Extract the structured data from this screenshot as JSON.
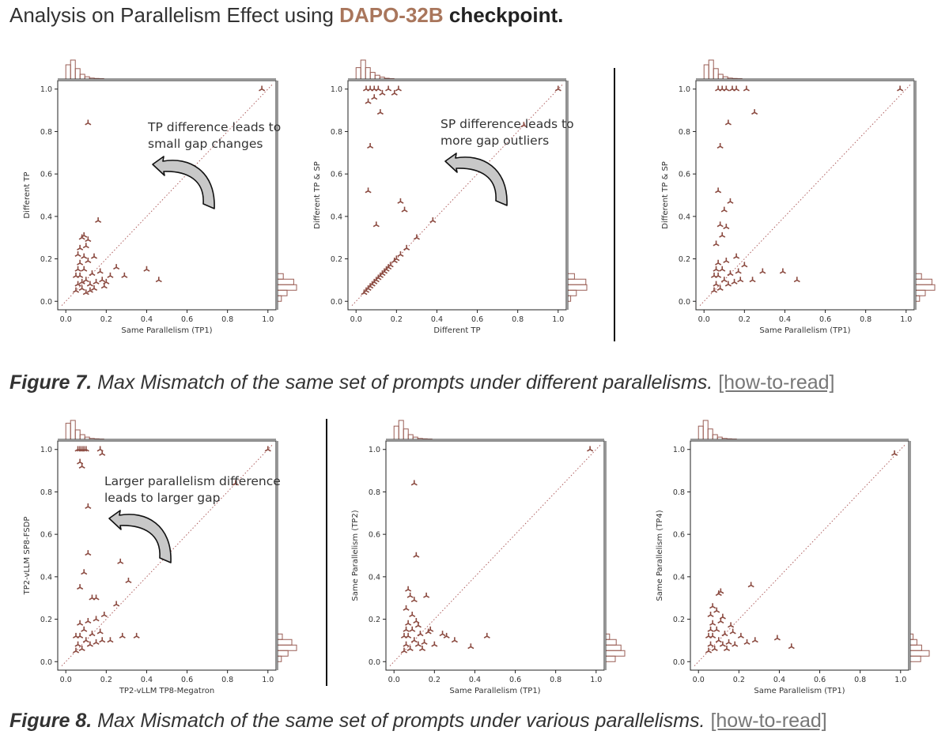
{
  "headline": {
    "prefix": "Analysis on Parallelism Effect using",
    "highlight": "DAPO-32B",
    "suffix": "checkpoint."
  },
  "figures": [
    {
      "fig_label": "Figure 7.",
      "caption": "Max Mismatch of the same set of prompts under different parallelisms.",
      "link": "[how-to-read]"
    },
    {
      "fig_label": "Figure 8.",
      "caption": "Max Mismatch of the same set of prompts under various parallelisms.",
      "link": "[how-to-read]"
    }
  ],
  "colors": {
    "marker": "#8b4a40",
    "diagonal": "#b06060",
    "hist": "#9a5e55",
    "highlight": "#a9765c"
  },
  "chart_data": [
    {
      "type": "scatter",
      "title": "",
      "xlabel": "Same Parallelism (TP1)",
      "ylabel": "Different TP",
      "xlim": [
        -0.04,
        1.04
      ],
      "ylim": [
        -0.04,
        1.04
      ],
      "xticks": [
        "0.0",
        "0.2",
        "0.4",
        "0.6",
        "0.8",
        "1.0"
      ],
      "yticks": [
        "0.0",
        "0.2",
        "0.4",
        "0.6",
        "0.8",
        "1.0"
      ],
      "annotation": "TP difference leads to\nsmall gap changes",
      "top_hist": [
        0.75,
        1.0,
        0.55,
        0.25,
        0.12,
        0.05,
        0.03,
        0.02
      ],
      "right_hist": [
        0.3,
        0.85,
        1.0,
        0.5,
        0.2
      ],
      "points": [
        [
          0.97,
          1.0
        ],
        [
          0.11,
          0.84
        ],
        [
          0.16,
          0.38
        ],
        [
          0.4,
          0.15
        ],
        [
          0.46,
          0.1
        ],
        [
          0.29,
          0.12
        ],
        [
          0.25,
          0.16
        ],
        [
          0.08,
          0.3
        ],
        [
          0.09,
          0.31
        ],
        [
          0.11,
          0.29
        ],
        [
          0.06,
          0.22
        ],
        [
          0.1,
          0.26
        ],
        [
          0.22,
          0.12
        ],
        [
          0.14,
          0.21
        ],
        [
          0.05,
          0.05
        ],
        [
          0.06,
          0.08
        ],
        [
          0.08,
          0.06
        ],
        [
          0.07,
          0.12
        ],
        [
          0.1,
          0.1
        ],
        [
          0.12,
          0.08
        ],
        [
          0.09,
          0.15
        ],
        [
          0.13,
          0.13
        ],
        [
          0.15,
          0.09
        ],
        [
          0.07,
          0.18
        ],
        [
          0.11,
          0.19
        ],
        [
          0.05,
          0.12
        ],
        [
          0.18,
          0.1
        ],
        [
          0.17,
          0.14
        ],
        [
          0.06,
          0.15
        ],
        [
          0.08,
          0.09
        ],
        [
          0.12,
          0.05
        ],
        [
          0.1,
          0.04
        ],
        [
          0.14,
          0.06
        ],
        [
          0.09,
          0.21
        ],
        [
          0.07,
          0.25
        ],
        [
          0.19,
          0.07
        ],
        [
          0.2,
          0.09
        ]
      ]
    },
    {
      "type": "scatter",
      "title": "",
      "xlabel": "Different TP",
      "ylabel": "Different TP & SP",
      "xlim": [
        -0.04,
        1.04
      ],
      "ylim": [
        -0.04,
        1.04
      ],
      "xticks": [
        "0.0",
        "0.2",
        "0.4",
        "0.6",
        "0.8",
        "1.0"
      ],
      "yticks": [
        "0.0",
        "0.2",
        "0.4",
        "0.6",
        "0.8",
        "1.0"
      ],
      "annotation": "SP difference leads to\nmore gap outliers",
      "top_hist": [
        0.6,
        1.0,
        0.6,
        0.35,
        0.2,
        0.1,
        0.04,
        0.02
      ],
      "right_hist": [
        0.35,
        0.95,
        1.0,
        0.45,
        0.15
      ],
      "points": [
        [
          1.0,
          1.0
        ],
        [
          0.05,
          1.0
        ],
        [
          0.07,
          1.0
        ],
        [
          0.09,
          1.0
        ],
        [
          0.11,
          1.0
        ],
        [
          0.16,
          1.0
        ],
        [
          0.21,
          1.0
        ],
        [
          0.06,
          0.94
        ],
        [
          0.13,
          0.98
        ],
        [
          0.09,
          0.96
        ],
        [
          0.12,
          0.89
        ],
        [
          0.19,
          0.98
        ],
        [
          0.07,
          0.73
        ],
        [
          0.06,
          0.52
        ],
        [
          0.22,
          0.47
        ],
        [
          0.24,
          0.43
        ],
        [
          0.1,
          0.36
        ],
        [
          0.83,
          0.83
        ],
        [
          0.38,
          0.38
        ],
        [
          0.3,
          0.3
        ],
        [
          0.25,
          0.25
        ],
        [
          0.22,
          0.22
        ],
        [
          0.19,
          0.19
        ],
        [
          0.17,
          0.17
        ],
        [
          0.15,
          0.15
        ],
        [
          0.13,
          0.13
        ],
        [
          0.11,
          0.11
        ],
        [
          0.1,
          0.1
        ],
        [
          0.09,
          0.09
        ],
        [
          0.08,
          0.08
        ],
        [
          0.07,
          0.07
        ],
        [
          0.06,
          0.06
        ],
        [
          0.05,
          0.05
        ],
        [
          0.04,
          0.04
        ],
        [
          0.12,
          0.12
        ],
        [
          0.14,
          0.14
        ],
        [
          0.16,
          0.16
        ],
        [
          0.2,
          0.2
        ]
      ]
    },
    {
      "type": "scatter",
      "title": "",
      "xlabel": "Same Parallelism (TP1)",
      "ylabel": "Different TP & SP",
      "xlim": [
        -0.04,
        1.04
      ],
      "ylim": [
        -0.04,
        1.04
      ],
      "xticks": [
        "0.0",
        "0.2",
        "0.4",
        "0.6",
        "0.8",
        "1.0"
      ],
      "yticks": [
        "0.0",
        "0.2",
        "0.4",
        "0.6",
        "0.8",
        "1.0"
      ],
      "annotation": "",
      "top_hist": [
        0.75,
        1.0,
        0.55,
        0.25,
        0.12,
        0.05,
        0.03,
        0.02
      ],
      "right_hist": [
        0.3,
        0.85,
        1.0,
        0.5,
        0.2
      ],
      "points": [
        [
          0.97,
          1.0
        ],
        [
          0.07,
          1.0
        ],
        [
          0.09,
          1.0
        ],
        [
          0.11,
          1.0
        ],
        [
          0.14,
          1.0
        ],
        [
          0.16,
          1.0
        ],
        [
          0.21,
          1.0
        ],
        [
          0.25,
          0.89
        ],
        [
          0.12,
          0.84
        ],
        [
          0.08,
          0.73
        ],
        [
          0.07,
          0.52
        ],
        [
          0.13,
          0.47
        ],
        [
          0.1,
          0.43
        ],
        [
          0.08,
          0.36
        ],
        [
          0.11,
          0.35
        ],
        [
          0.09,
          0.31
        ],
        [
          0.06,
          0.27
        ],
        [
          0.16,
          0.21
        ],
        [
          0.2,
          0.17
        ],
        [
          0.29,
          0.14
        ],
        [
          0.39,
          0.14
        ],
        [
          0.46,
          0.1
        ],
        [
          0.24,
          0.1
        ],
        [
          0.05,
          0.05
        ],
        [
          0.06,
          0.08
        ],
        [
          0.08,
          0.06
        ],
        [
          0.07,
          0.12
        ],
        [
          0.1,
          0.1
        ],
        [
          0.12,
          0.08
        ],
        [
          0.09,
          0.15
        ],
        [
          0.13,
          0.13
        ],
        [
          0.15,
          0.09
        ],
        [
          0.07,
          0.18
        ],
        [
          0.11,
          0.19
        ],
        [
          0.05,
          0.12
        ],
        [
          0.18,
          0.1
        ],
        [
          0.17,
          0.14
        ],
        [
          0.06,
          0.15
        ]
      ]
    },
    {
      "type": "scatter",
      "title": "",
      "xlabel": "TP2-vLLM TP8-Megatron",
      "ylabel": "TP2-vLLM SP8-FSDP",
      "xlim": [
        -0.04,
        1.04
      ],
      "ylim": [
        -0.04,
        1.04
      ],
      "xticks": [
        "0.0",
        "0.2",
        "0.4",
        "0.6",
        "0.8",
        "1.0"
      ],
      "yticks": [
        "0.0",
        "0.2",
        "0.4",
        "0.6",
        "0.8",
        "1.0"
      ],
      "annotation": "Larger parallelism difference\nleads to larger gap",
      "top_hist": [
        0.85,
        1.0,
        0.5,
        0.25,
        0.12,
        0.05,
        0.03,
        0.02
      ],
      "right_hist": [
        0.25,
        0.75,
        1.0,
        0.55,
        0.2
      ],
      "points": [
        [
          1.0,
          1.0
        ],
        [
          0.06,
          1.0
        ],
        [
          0.07,
          1.0
        ],
        [
          0.08,
          1.0
        ],
        [
          0.09,
          1.0
        ],
        [
          0.1,
          1.0
        ],
        [
          0.17,
          1.0
        ],
        [
          0.18,
          0.98
        ],
        [
          0.07,
          0.94
        ],
        [
          0.08,
          0.92
        ],
        [
          0.11,
          0.73
        ],
        [
          0.84,
          0.84
        ],
        [
          0.11,
          0.51
        ],
        [
          0.27,
          0.47
        ],
        [
          0.09,
          0.42
        ],
        [
          0.31,
          0.38
        ],
        [
          0.07,
          0.35
        ],
        [
          0.13,
          0.3
        ],
        [
          0.15,
          0.3
        ],
        [
          0.25,
          0.27
        ],
        [
          0.19,
          0.22
        ],
        [
          0.15,
          0.2
        ],
        [
          0.35,
          0.12
        ],
        [
          0.28,
          0.12
        ],
        [
          0.22,
          0.1
        ],
        [
          0.05,
          0.05
        ],
        [
          0.06,
          0.08
        ],
        [
          0.08,
          0.06
        ],
        [
          0.07,
          0.12
        ],
        [
          0.1,
          0.1
        ],
        [
          0.12,
          0.08
        ],
        [
          0.09,
          0.15
        ],
        [
          0.13,
          0.13
        ],
        [
          0.15,
          0.09
        ],
        [
          0.07,
          0.18
        ],
        [
          0.11,
          0.19
        ],
        [
          0.05,
          0.12
        ],
        [
          0.18,
          0.1
        ],
        [
          0.17,
          0.14
        ]
      ]
    },
    {
      "type": "scatter",
      "title": "",
      "xlabel": "Same Parallelism (TP1)",
      "ylabel": "Same Parallelism (TP2)",
      "xlim": [
        -0.04,
        1.04
      ],
      "ylim": [
        -0.04,
        1.04
      ],
      "xticks": [
        "0.0",
        "0.2",
        "0.4",
        "0.6",
        "0.8",
        "1.0"
      ],
      "yticks": [
        "0.0",
        "0.2",
        "0.4",
        "0.6",
        "0.8",
        "1.0"
      ],
      "annotation": "",
      "top_hist": [
        0.7,
        1.0,
        0.55,
        0.25,
        0.12,
        0.05,
        0.03,
        0.02
      ],
      "right_hist": [
        0.2,
        0.55,
        0.8,
        1.0,
        0.5
      ],
      "points": [
        [
          0.97,
          1.0
        ],
        [
          0.1,
          0.84
        ],
        [
          0.11,
          0.5
        ],
        [
          0.07,
          0.34
        ],
        [
          0.08,
          0.31
        ],
        [
          0.1,
          0.29
        ],
        [
          0.16,
          0.31
        ],
        [
          0.06,
          0.25
        ],
        [
          0.09,
          0.22
        ],
        [
          0.18,
          0.15
        ],
        [
          0.26,
          0.12
        ],
        [
          0.3,
          0.1
        ],
        [
          0.38,
          0.07
        ],
        [
          0.46,
          0.12
        ],
        [
          0.24,
          0.13
        ],
        [
          0.2,
          0.08
        ],
        [
          0.05,
          0.05
        ],
        [
          0.06,
          0.08
        ],
        [
          0.08,
          0.06
        ],
        [
          0.07,
          0.12
        ],
        [
          0.1,
          0.1
        ],
        [
          0.12,
          0.08
        ],
        [
          0.09,
          0.15
        ],
        [
          0.13,
          0.13
        ],
        [
          0.15,
          0.09
        ],
        [
          0.07,
          0.18
        ],
        [
          0.11,
          0.19
        ],
        [
          0.05,
          0.12
        ],
        [
          0.17,
          0.14
        ],
        [
          0.06,
          0.15
        ],
        [
          0.14,
          0.06
        ],
        [
          0.12,
          0.17
        ]
      ]
    },
    {
      "type": "scatter",
      "title": "",
      "xlabel": "Same Parallelism (TP1)",
      "ylabel": "Same Parallelism (TP4)",
      "xlim": [
        -0.04,
        1.04
      ],
      "ylim": [
        -0.04,
        1.04
      ],
      "xticks": [
        "0.0",
        "0.2",
        "0.4",
        "0.6",
        "0.8",
        "1.0"
      ],
      "yticks": [
        "0.0",
        "0.2",
        "0.4",
        "0.6",
        "0.8",
        "1.0"
      ],
      "annotation": "",
      "top_hist": [
        0.7,
        1.0,
        0.55,
        0.25,
        0.12,
        0.05,
        0.03,
        0.02
      ],
      "right_hist": [
        0.15,
        0.35,
        0.6,
        1.0,
        0.55
      ],
      "points": [
        [
          0.97,
          0.98
        ],
        [
          0.11,
          0.33
        ],
        [
          0.1,
          0.32
        ],
        [
          0.26,
          0.36
        ],
        [
          0.07,
          0.26
        ],
        [
          0.09,
          0.24
        ],
        [
          0.06,
          0.22
        ],
        [
          0.12,
          0.21
        ],
        [
          0.16,
          0.17
        ],
        [
          0.21,
          0.12
        ],
        [
          0.28,
          0.1
        ],
        [
          0.39,
          0.11
        ],
        [
          0.46,
          0.07
        ],
        [
          0.24,
          0.09
        ],
        [
          0.05,
          0.05
        ],
        [
          0.06,
          0.08
        ],
        [
          0.08,
          0.06
        ],
        [
          0.07,
          0.12
        ],
        [
          0.1,
          0.1
        ],
        [
          0.12,
          0.08
        ],
        [
          0.09,
          0.15
        ],
        [
          0.13,
          0.13
        ],
        [
          0.15,
          0.09
        ],
        [
          0.07,
          0.18
        ],
        [
          0.11,
          0.19
        ],
        [
          0.05,
          0.12
        ],
        [
          0.17,
          0.14
        ],
        [
          0.06,
          0.15
        ],
        [
          0.14,
          0.06
        ],
        [
          0.18,
          0.08
        ]
      ]
    }
  ]
}
